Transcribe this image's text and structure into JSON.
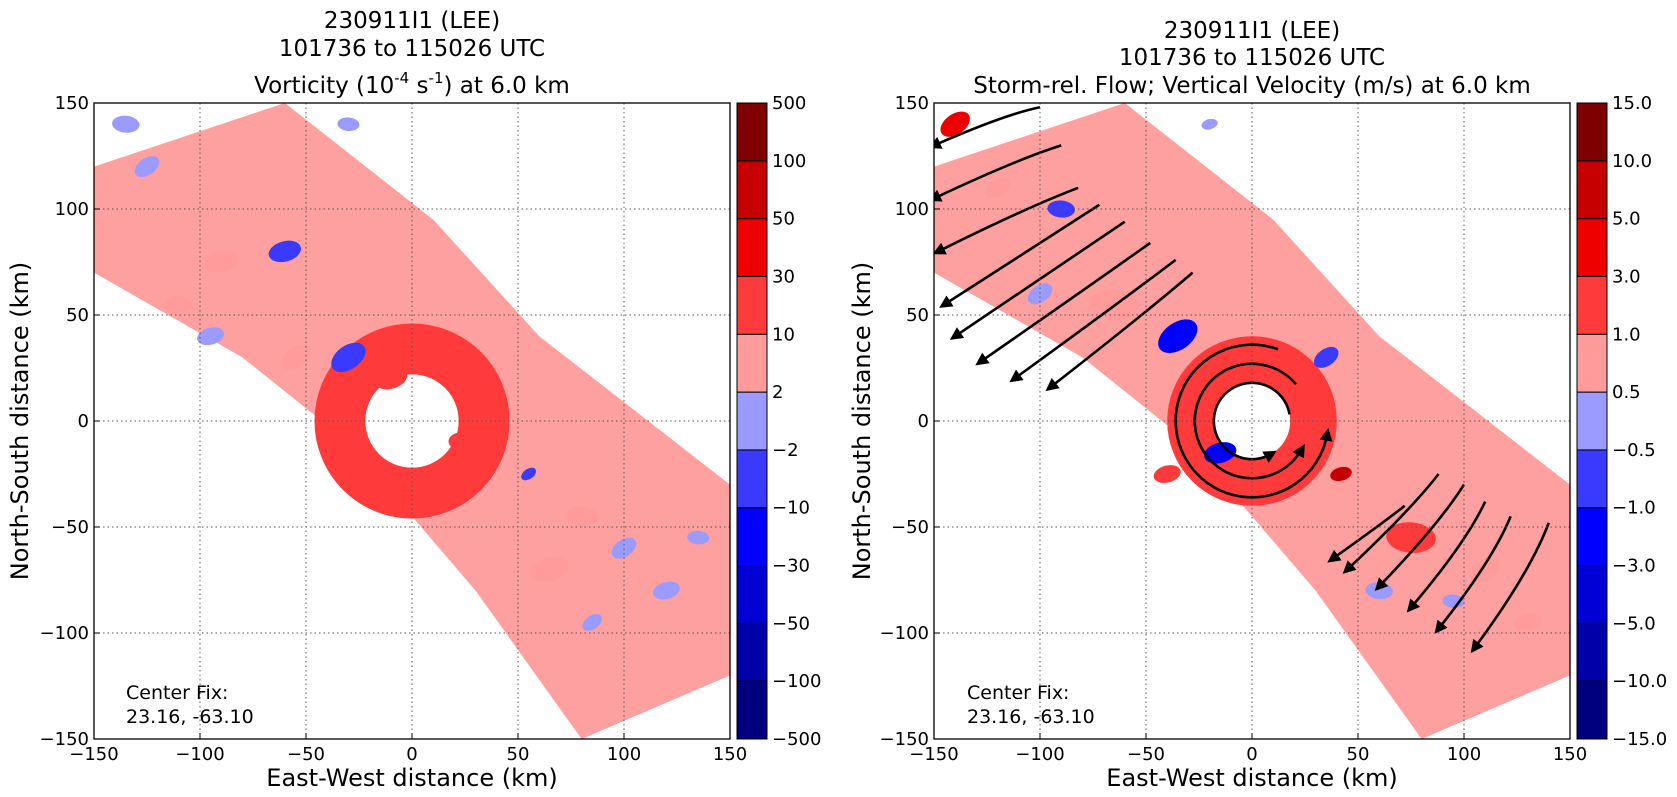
{
  "chart_data": [
    {
      "type": "heatmap",
      "title_lines": [
        "230911I1 (LEE)",
        "101736 to 115026 UTC"
      ],
      "title_line3": {
        "pre": "Vorticity (10",
        "sup1": "-4",
        "mid": " s",
        "sup2": "-1",
        "post": ") at 6.0 km"
      },
      "xlabel": "East-West distance (km)",
      "ylabel": "North-South distance (km)",
      "xlim": [
        -150,
        150
      ],
      "ylim": [
        -150,
        150
      ],
      "xticks": [
        -150,
        -100,
        -50,
        0,
        50,
        100,
        150
      ],
      "yticks": [
        -150,
        -100,
        -50,
        0,
        50,
        100,
        150
      ],
      "grid": true,
      "annotation": [
        "Center Fix:",
        "23.16, -63.10"
      ],
      "colorbar": {
        "levels": [
          "-500",
          "-100",
          "-50",
          "-30",
          "-10",
          "-2",
          "2",
          "10",
          "30",
          "50",
          "100",
          "500"
        ],
        "colors": [
          "#00007f",
          "#0000a8",
          "#0000d4",
          "#0000ff",
          "#3a3aff",
          "#9b9bff",
          "#ffffff",
          "#ff9b9b",
          "#ff3a3a",
          "#ee0000",
          "#c60000",
          "#7f0000"
        ]
      },
      "features": {
        "rainband": {
          "ring_min": 30,
          "ring_max": 150,
          "color": "#ff9b9b"
        },
        "eyewall": {
          "r_inner": 22,
          "r_outer": 46,
          "color": "#ff3a3a"
        },
        "eye": {
          "radius": 22
        },
        "blobs": [
          {
            "x": -30,
            "y": 30,
            "r": 7,
            "level": "-10"
          },
          {
            "x": -60,
            "y": 80,
            "r": 6,
            "level": "-10"
          },
          {
            "x": -135,
            "y": 140,
            "r": 5,
            "level": "-2"
          },
          {
            "x": -125,
            "y": 120,
            "r": 5,
            "level": "-2"
          },
          {
            "x": -95,
            "y": 40,
            "r": 5,
            "level": "-2"
          },
          {
            "x": -30,
            "y": 140,
            "r": 4,
            "level": "-2"
          },
          {
            "x": 55,
            "y": -25,
            "r": 3,
            "level": "-10"
          },
          {
            "x": 65,
            "y": -70,
            "r": 7,
            "level": "10"
          },
          {
            "x": 80,
            "y": -45,
            "r": 6,
            "level": "10"
          },
          {
            "x": 100,
            "y": -60,
            "r": 5,
            "level": "-2"
          },
          {
            "x": 120,
            "y": -80,
            "r": 5,
            "level": "-2"
          },
          {
            "x": 135,
            "y": -55,
            "r": 4,
            "level": "-2"
          },
          {
            "x": 85,
            "y": -95,
            "r": 4,
            "level": "-2"
          },
          {
            "x": -10,
            "y": 20,
            "r": 6,
            "level": "30"
          },
          {
            "x": 25,
            "y": -10,
            "r": 6,
            "level": "30"
          },
          {
            "x": -55,
            "y": 30,
            "r": 6,
            "level": "10"
          },
          {
            "x": -90,
            "y": 75,
            "r": 6,
            "level": "10"
          },
          {
            "x": -110,
            "y": 55,
            "r": 5,
            "level": "10"
          }
        ]
      }
    },
    {
      "type": "heatmap",
      "title_lines": [
        "230911I1 (LEE)",
        "101736 to 115026 UTC",
        "Storm-rel. Flow; Vertical Velocity (m/s) at 6.0 km"
      ],
      "xlabel": "East-West distance (km)",
      "ylabel": "North-South distance (km)",
      "xlim": [
        -150,
        150
      ],
      "ylim": [
        -150,
        150
      ],
      "xticks": [
        -150,
        -100,
        -50,
        0,
        50,
        100,
        150
      ],
      "yticks": [
        -150,
        -100,
        -50,
        0,
        50,
        100,
        150
      ],
      "grid": true,
      "annotation": [
        "Center Fix:",
        "23.16, -63.10"
      ],
      "colorbar": {
        "levels": [
          "-15.0",
          "-10.0",
          "-5.0",
          "-3.0",
          "-1.0",
          "-0.5",
          "0.5",
          "1.0",
          "3.0",
          "5.0",
          "10.0",
          "15.0"
        ],
        "colors": [
          "#00007f",
          "#0000a8",
          "#0000d4",
          "#0000ff",
          "#3a3aff",
          "#9b9bff",
          "#ffffff",
          "#ff9b9b",
          "#ff3a3a",
          "#ee0000",
          "#c60000",
          "#7f0000"
        ]
      },
      "features": {
        "rainband": {
          "ring_min": 30,
          "ring_max": 150,
          "color": "#ff9b9b"
        },
        "eyewall": {
          "r_inner": 18,
          "r_outer": 40,
          "color": "#ff3a3a"
        },
        "eye": {
          "radius": 18
        },
        "blobs": [
          {
            "x": -35,
            "y": 40,
            "r": 8,
            "level": "-3.0"
          },
          {
            "x": -15,
            "y": -15,
            "r": 6,
            "level": "-3.0"
          },
          {
            "x": -65,
            "y": 55,
            "r": 9,
            "level": "1.0"
          },
          {
            "x": -140,
            "y": 140,
            "r": 6,
            "level": "5.0"
          },
          {
            "x": 42,
            "y": -25,
            "r": 4,
            "level": "10.0"
          },
          {
            "x": 75,
            "y": -55,
            "r": 9,
            "level": "3.0"
          },
          {
            "x": 110,
            "y": -70,
            "r": 6,
            "level": "1.0"
          },
          {
            "x": 130,
            "y": -95,
            "r": 5,
            "level": "1.0"
          },
          {
            "x": -90,
            "y": 100,
            "r": 5,
            "level": "-1.0"
          },
          {
            "x": -100,
            "y": 60,
            "r": 5,
            "level": "-0.5"
          },
          {
            "x": -20,
            "y": 140,
            "r": 3,
            "level": "-0.5"
          },
          {
            "x": 60,
            "y": -80,
            "r": 5,
            "level": "-0.5"
          },
          {
            "x": 35,
            "y": 30,
            "r": 5,
            "level": "-1.0"
          },
          {
            "x": -40,
            "y": -25,
            "r": 5,
            "level": "3.0"
          },
          {
            "x": 95,
            "y": -85,
            "r": 4,
            "level": "-0.5"
          },
          {
            "x": -120,
            "y": 110,
            "r": 5,
            "level": "1.0"
          }
        ],
        "streamlines": {
          "circles": [
            {
              "r": 18,
              "start": 10,
              "end": 300
            },
            {
              "r": 27,
              "start": 40,
              "end": 330
            },
            {
              "r": 36,
              "start": 70,
              "end": 350
            }
          ],
          "bands": [
            {
              "x0": -150,
              "y0": 130,
              "x1": -100,
              "y1": 148
            },
            {
              "x0": -150,
              "y0": 105,
              "x1": -90,
              "y1": 130
            },
            {
              "x0": -148,
              "y0": 80,
              "x1": -82,
              "y1": 110
            },
            {
              "x0": -145,
              "y0": 55,
              "x1": -72,
              "y1": 102
            },
            {
              "x0": -140,
              "y0": 40,
              "x1": -60,
              "y1": 94
            },
            {
              "x0": -128,
              "y0": 28,
              "x1": -48,
              "y1": 84
            },
            {
              "x0": -112,
              "y0": 20,
              "x1": -36,
              "y1": 76
            },
            {
              "x0": -95,
              "y0": 16,
              "x1": -28,
              "y1": 70
            },
            {
              "x0": 38,
              "y0": -65,
              "x1": 72,
              "y1": -40
            },
            {
              "x0": 45,
              "y0": -70,
              "x1": 88,
              "y1": -25
            },
            {
              "x0": 60,
              "y0": -78,
              "x1": 100,
              "y1": -30
            },
            {
              "x0": 75,
              "y0": -88,
              "x1": 110,
              "y1": -38
            },
            {
              "x0": 88,
              "y0": -98,
              "x1": 122,
              "y1": -45
            },
            {
              "x0": 105,
              "y0": -107,
              "x1": 140,
              "y1": -48
            }
          ]
        }
      }
    }
  ]
}
